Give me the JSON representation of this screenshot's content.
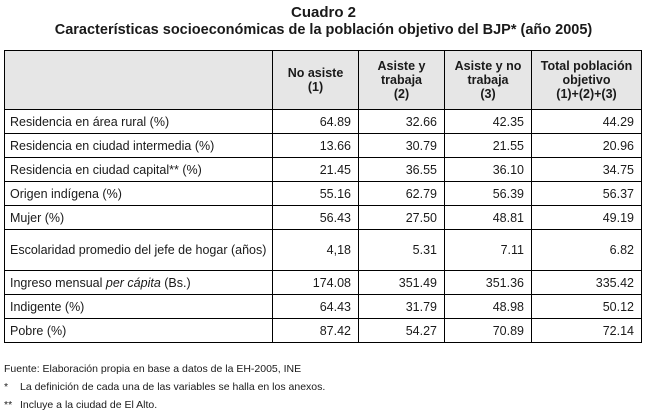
{
  "title": "Cuadro 2",
  "subtitle": "Características socioeconómicas de la población objetivo del BJP* (año 2005)",
  "table": {
    "headers": [
      "",
      "No asiste\n(1)",
      "Asiste y\ntrabaja\n(2)",
      "Asiste y no\ntrabaja\n(3)",
      "Total población\nobjetivo\n(1)+(2)+(3)"
    ],
    "rows": [
      {
        "label": "Residencia en área rural (%)",
        "values": [
          "64.89",
          "32.66",
          "42.35",
          "44.29"
        ]
      },
      {
        "label": "Residencia en ciudad intermedia (%)",
        "values": [
          "13.66",
          "30.79",
          "21.55",
          "20.96"
        ]
      },
      {
        "label": "Residencia en ciudad capital** (%)",
        "values": [
          "21.45",
          "36.55",
          "36.10",
          "34.75"
        ]
      },
      {
        "label": "Origen indígena (%)",
        "values": [
          "55.16",
          "62.79",
          "56.39",
          "56.37"
        ]
      },
      {
        "label": "Mujer (%)",
        "values": [
          "56.43",
          "27.50",
          "48.81",
          "49.19"
        ]
      },
      {
        "label": "Escolaridad promedio del jefe de hogar (años)",
        "values": [
          "4,18",
          "5.31",
          "7.11",
          "6.82"
        ]
      },
      {
        "label_pre": "Ingreso mensual ",
        "label_em": "per cápita",
        "label_post": " (Bs.)",
        "values": [
          "174.08",
          "351.49",
          "351.36",
          "335.42"
        ]
      },
      {
        "label": "Indigente (%)",
        "values": [
          "64.43",
          "31.79",
          "48.98",
          "50.12"
        ]
      },
      {
        "label": "Pobre (%)",
        "values": [
          "87.42",
          "54.27",
          "70.89",
          "72.14"
        ]
      }
    ]
  },
  "notes": {
    "source": "Fuente: Elaboración propia en base a datos de la EH-2005, INE",
    "note1_mark": "*",
    "note1_text": "La definición de cada una de las variables se halla en los anexos.",
    "note2_mark": "**",
    "note2_text": "Incluye a la ciudad de El Alto."
  }
}
